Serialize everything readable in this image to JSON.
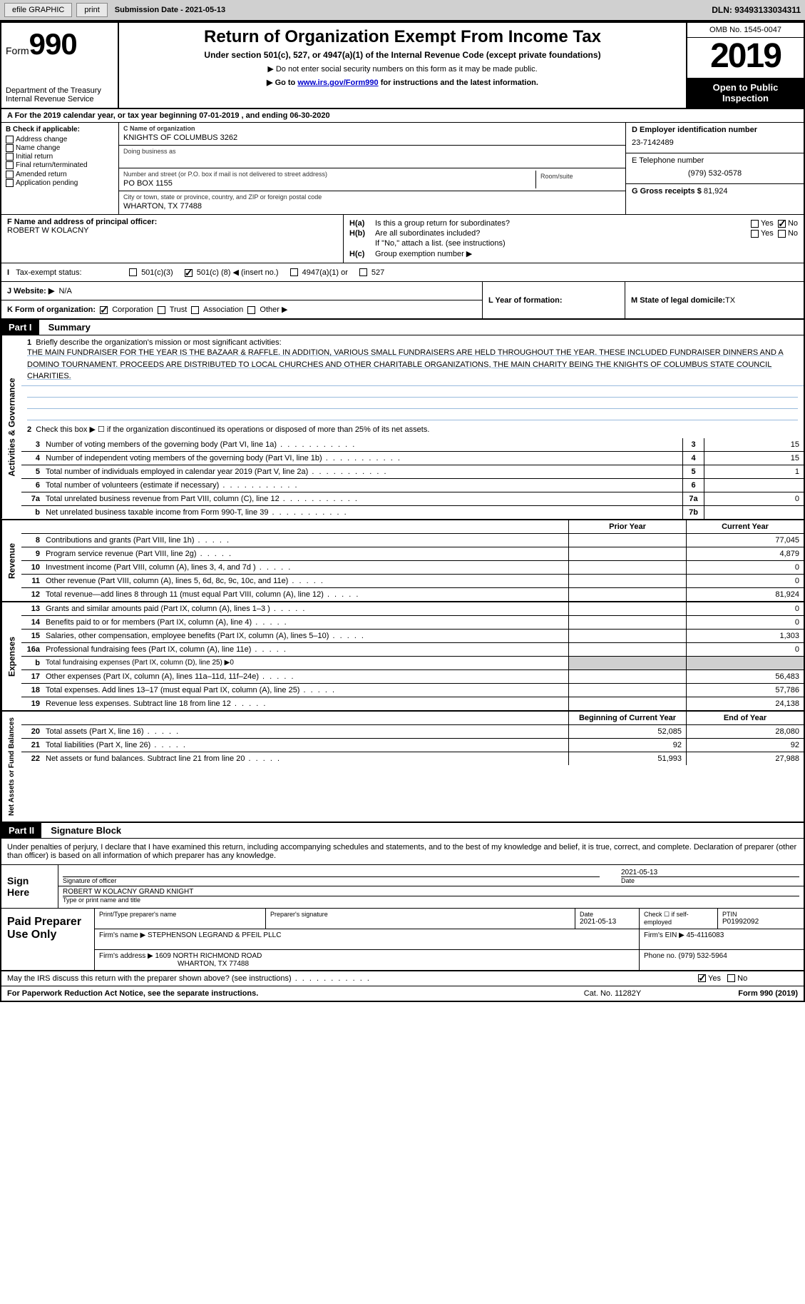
{
  "top": {
    "efile": "efile GRAPHIC",
    "print": "print",
    "sub_label": "Submission Date - ",
    "sub_date": "2021-05-13",
    "dln": "DLN: 93493133034311"
  },
  "header": {
    "form": "Form",
    "num": "990",
    "dept": "Department of the Treasury\nInternal Revenue Service",
    "title": "Return of Organization Exempt From Income Tax",
    "subtitle": "Under section 501(c), 527, or 4947(a)(1) of the Internal Revenue Code (except private foundations)",
    "note1": "▶ Do not enter social security numbers on this form as it may be made public.",
    "note2_pre": "▶ Go to ",
    "note2_link": "www.irs.gov/Form990",
    "note2_post": " for instructions and the latest information.",
    "omb": "OMB No. 1545-0047",
    "year": "2019",
    "inspection": "Open to Public Inspection"
  },
  "rowA": "A For the 2019 calendar year, or tax year beginning 07-01-2019     , and ending 06-30-2020",
  "sectionB": {
    "header": "B Check if applicable:",
    "addr": "Address change",
    "name": "Name change",
    "init": "Initial return",
    "final": "Final return/terminated",
    "amend": "Amended return",
    "app": "Application pending"
  },
  "sectionC": {
    "name_label": "C Name of organization",
    "name": "KNIGHTS OF COLUMBUS 3262",
    "dba_label": "Doing business as",
    "dba": "",
    "street_label": "Number and street (or P.O. box if mail is not delivered to street address)",
    "street": "PO BOX 1155",
    "room_label": "Room/suite",
    "city_label": "City or town, state or province, country, and ZIP or foreign postal code",
    "city": "WHARTON, TX  77488"
  },
  "sectionD": {
    "ein_label": "D Employer identification number",
    "ein": "23-7142489",
    "phone_label": "E Telephone number",
    "phone": "(979) 532-0578",
    "gross_label": "G Gross receipts $ ",
    "gross": "81,924"
  },
  "sectionF": {
    "label": "F  Name and address of principal officer:",
    "name": "ROBERT W KOLACNY"
  },
  "sectionH": {
    "a_label": "H(a)",
    "a_text": "Is this a group return for subordinates?",
    "b_label": "H(b)",
    "b_text": "Are all subordinates included?",
    "b_note": "If \"No,\" attach a list. (see instructions)",
    "c_label": "H(c)",
    "c_text": "Group exemption number ▶",
    "yes": "Yes",
    "no": "No"
  },
  "tax": {
    "label": "Tax-exempt status:",
    "c3": "501(c)(3)",
    "c_pre": "501(c) (",
    "c_num": "8",
    "c_post": ") ◀ (insert no.)",
    "a1": "4947(a)(1) or",
    "s527": "527"
  },
  "rowJ": {
    "label": "J   Website: ▶",
    "val": "N/A"
  },
  "rowK": {
    "label": "K Form of organization:",
    "corp": "Corporation",
    "trust": "Trust",
    "assoc": "Association",
    "other": "Other ▶",
    "l_label": "L Year of formation:",
    "m_label": "M State of legal domicile: ",
    "m_val": "TX"
  },
  "part1": {
    "header": "Part I",
    "title": "Summary",
    "q1_num": "1",
    "q1": "Briefly describe the organization's mission or most significant activities:",
    "mission": "THE MAIN FUNDRAISER FOR THE YEAR IS THE BAZAAR & RAFFLE. IN ADDITION, VARIOUS SMALL FUNDRAISERS ARE HELD THROUGHOUT THE YEAR. THESE INCLUDED FUNDRAISER DINNERS AND A DOMINO TOURNAMENT. PROCEEDS ARE DISTRIBUTED TO LOCAL CHURCHES AND OTHER CHARITABLE ORGANIZATIONS, THE MAIN CHARITY BEING THE KNIGHTS OF COLUMBUS STATE COUNCIL CHARITIES.",
    "q2_num": "2",
    "q2": "Check this box ▶ ☐  if the organization discontinued its operations or disposed of more than 25% of its net assets.",
    "vert1": "Activities & Governance",
    "vert2": "Revenue",
    "vert3": "Expenses",
    "vert4": "Net Assets or Fund Balances",
    "lines_gov": [
      {
        "n": "3",
        "t": "Number of voting members of the governing body (Part VI, line 1a)",
        "b": "3",
        "v": "15"
      },
      {
        "n": "4",
        "t": "Number of independent voting members of the governing body (Part VI, line 1b)",
        "b": "4",
        "v": "15"
      },
      {
        "n": "5",
        "t": "Total number of individuals employed in calendar year 2019 (Part V, line 2a)",
        "b": "5",
        "v": "1"
      },
      {
        "n": "6",
        "t": "Total number of volunteers (estimate if necessary)",
        "b": "6",
        "v": ""
      },
      {
        "n": "7a",
        "t": "Total unrelated business revenue from Part VIII, column (C), line 12",
        "b": "7a",
        "v": "0"
      },
      {
        "n": "b",
        "t": "Net unrelated business taxable income from Form 990-T, line 39",
        "b": "7b",
        "v": ""
      }
    ],
    "col_prior": "Prior Year",
    "col_current": "Current Year",
    "lines_rev": [
      {
        "n": "8",
        "t": "Contributions and grants (Part VIII, line 1h)",
        "p": "",
        "c": "77,045"
      },
      {
        "n": "9",
        "t": "Program service revenue (Part VIII, line 2g)",
        "p": "",
        "c": "4,879"
      },
      {
        "n": "10",
        "t": "Investment income (Part VIII, column (A), lines 3, 4, and 7d )",
        "p": "",
        "c": "0"
      },
      {
        "n": "11",
        "t": "Other revenue (Part VIII, column (A), lines 5, 6d, 8c, 9c, 10c, and 11e)",
        "p": "",
        "c": "0"
      },
      {
        "n": "12",
        "t": "Total revenue—add lines 8 through 11 (must equal Part VIII, column (A), line 12)",
        "p": "",
        "c": "81,924"
      }
    ],
    "lines_exp": [
      {
        "n": "13",
        "t": "Grants and similar amounts paid (Part IX, column (A), lines 1–3 )",
        "p": "",
        "c": "0"
      },
      {
        "n": "14",
        "t": "Benefits paid to or for members (Part IX, column (A), line 4)",
        "p": "",
        "c": "0"
      },
      {
        "n": "15",
        "t": "Salaries, other compensation, employee benefits (Part IX, column (A), lines 5–10)",
        "p": "",
        "c": "1,303"
      },
      {
        "n": "16a",
        "t": "Professional fundraising fees (Part IX, column (A), line 11e)",
        "p": "",
        "c": "0"
      },
      {
        "n": "b",
        "t": "Total fundraising expenses (Part IX, column (D), line 25) ▶0",
        "shaded": true
      },
      {
        "n": "17",
        "t": "Other expenses (Part IX, column (A), lines 11a–11d, 11f–24e)",
        "p": "",
        "c": "56,483"
      },
      {
        "n": "18",
        "t": "Total expenses. Add lines 13–17 (must equal Part IX, column (A), line 25)",
        "p": "",
        "c": "57,786"
      },
      {
        "n": "19",
        "t": "Revenue less expenses. Subtract line 18 from line 12",
        "p": "",
        "c": "24,138"
      }
    ],
    "col_begin": "Beginning of Current Year",
    "col_end": "End of Year",
    "lines_net": [
      {
        "n": "20",
        "t": "Total assets (Part X, line 16)",
        "p": "52,085",
        "c": "28,080"
      },
      {
        "n": "21",
        "t": "Total liabilities (Part X, line 26)",
        "p": "92",
        "c": "92"
      },
      {
        "n": "22",
        "t": "Net assets or fund balances. Subtract line 21 from line 20",
        "p": "51,993",
        "c": "27,988"
      }
    ]
  },
  "part2": {
    "header": "Part II",
    "title": "Signature Block",
    "declaration": "Under penalties of perjury, I declare that I have examined this return, including accompanying schedules and statements, and to the best of my knowledge and belief, it is true, correct, and complete. Declaration of preparer (other than officer) is based on all information of which preparer has any knowledge.",
    "sign_here": "Sign Here",
    "sig_officer": "Signature of officer",
    "sig_date": "Date",
    "sig_date_val": "2021-05-13",
    "sig_name": "ROBERT W KOLACNY GRAND KNIGHT",
    "sig_name_label": "Type or print name and title",
    "paid": "Paid Preparer Use Only",
    "prep_name_label": "Print/Type preparer's name",
    "prep_sig_label": "Preparer's signature",
    "prep_date_label": "Date",
    "prep_date": "2021-05-13",
    "prep_check": "Check ☐ if self-employed",
    "prep_ptin_label": "PTIN",
    "prep_ptin": "P01992092",
    "firm_name_label": "Firm's name    ▶ ",
    "firm_name": "STEPHENSON LEGRAND & PFEIL PLLC",
    "firm_ein_label": "Firm's EIN ▶ ",
    "firm_ein": "45-4116083",
    "firm_addr_label": "Firm's address ▶ ",
    "firm_addr1": "1609 NORTH RICHMOND ROAD",
    "firm_addr2": "WHARTON, TX  77488",
    "firm_phone_label": "Phone no. ",
    "firm_phone": "(979) 532-5964",
    "discuss": "May the IRS discuss this return with the preparer shown above? (see instructions)",
    "yes": "Yes",
    "no": "No"
  },
  "footer": {
    "paperwork": "For Paperwork Reduction Act Notice, see the separate instructions.",
    "cat": "Cat. No. 11282Y",
    "form": "Form 990 (2019)"
  }
}
